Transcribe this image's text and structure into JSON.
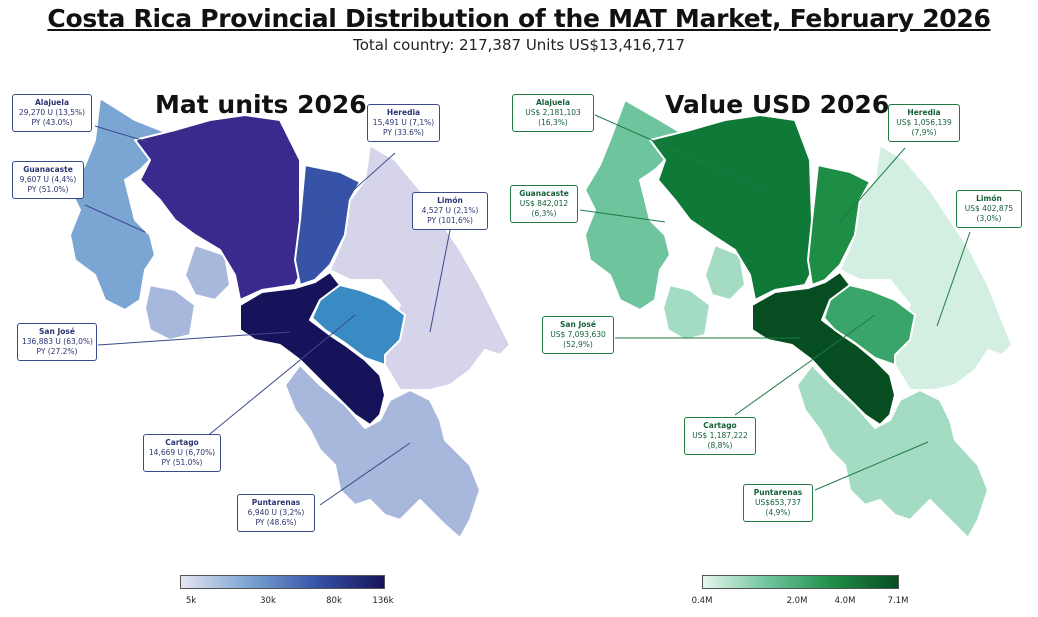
{
  "title": "Costa Rica Provincial Distribution of the MAT Market, February 2026",
  "subtitle": "Total country: 217,387 Units  US$13,416,717",
  "units_map": {
    "title": "Mat units 2026",
    "colors": {
      "Alajuela": "#3a2a8e",
      "Heredia": "#3653a8",
      "San José": "#17135a",
      "Cartago": "#3a8ac4",
      "Guanacaste": "#7ba5d2",
      "Puntarenas": "#a8b8dc",
      "Limón": "#d5d4ea"
    },
    "callouts": {
      "alajuela": {
        "name": "Alajuela",
        "line1": "29,270 U (13,5%)",
        "line2": "PY (43.0%)"
      },
      "heredia": {
        "name": "Heredia",
        "line1": "15,491 U (7,1%)",
        "line2": "PY (33.6%)"
      },
      "guanacaste": {
        "name": "Guanacaste",
        "line1": "9,607 U (4,4%)",
        "line2": "PY (51.0%)"
      },
      "limon": {
        "name": "Limón",
        "line1": "4,527 U (2,1%)",
        "line2": "PY (101,6%)"
      },
      "san_jose": {
        "name": "San José",
        "line1": "136,883 U (63,0%)",
        "line2": "PY (27.2%)"
      },
      "cartago": {
        "name": "Cartago",
        "line1": "14,669 U (6,70%)",
        "line2": "PY (51.0%)"
      },
      "puntarenas": {
        "name": "Puntarenas",
        "line1": "6,940 U (3,2%)",
        "line2": "PY (48.6%)"
      }
    },
    "legend": {
      "ticks": [
        "5k",
        "30k",
        "80k",
        "136k"
      ],
      "tick_values": [
        5,
        30,
        80,
        136
      ],
      "colors": [
        "#e6e4f1",
        "#7ba5d2",
        "#3653a8",
        "#17135a"
      ]
    }
  },
  "value_map": {
    "title": "Value USD 2026",
    "colors": {
      "Alajuela": "#0f7a38",
      "Heredia": "#1e8e46",
      "San José": "#074d22",
      "Cartago": "#3aa56a",
      "Guanacaste": "#6ec49d",
      "Puntarenas": "#a4dcc3",
      "Limón": "#d2efe2"
    },
    "callouts": {
      "alajuela": {
        "name": "Alajuela",
        "line1": "US$ 2,181,103",
        "line2": "(16,3%)"
      },
      "heredia": {
        "name": "Heredia",
        "line1": "US$ 1,056,139",
        "line2": "(7,9%)"
      },
      "guanacaste": {
        "name": "Guanacaste",
        "line1": "US$ 842,012",
        "line2": "(6,3%)"
      },
      "limon": {
        "name": "Limón",
        "line1": "US$ 402,875",
        "line2": "(3,0%)"
      },
      "san_jose": {
        "name": "San José",
        "line1": "US$ 7,093,630",
        "line2": "(52,9%)"
      },
      "cartago": {
        "name": "Cartago",
        "line1": "US$ 1,187,222",
        "line2": "(8,8%)"
      },
      "puntarenas": {
        "name": "Puntarenas",
        "line1": "US$653,737",
        "line2": "(4,9%)"
      }
    },
    "legend": {
      "ticks": [
        "0.4M",
        "2.0M",
        "4.0M",
        "7.1M"
      ],
      "tick_values": [
        0.4,
        2.0,
        4.0,
        7.1
      ],
      "colors": [
        "#e4f5ec",
        "#6ec49d",
        "#1e8e46",
        "#074d22"
      ]
    }
  }
}
